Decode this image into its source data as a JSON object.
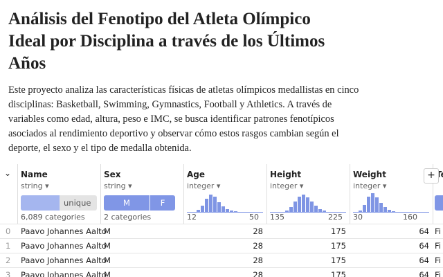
{
  "header": {
    "title": "Análisis del Fenotipo del Atleta Olímpico Ideal por Disciplina a través de los Últimos Años",
    "description": "Este proyecto analiza las características físicas de atletas olímpicos medallistas en cinco disciplinas: Basketball, Swimming, Gymnastics, Football y Athletics. A través de variables como edad, altura, peso e IMC, se busca identificar patrones fenotípicos asociados al rendimiento deportivo y observar cómo estos rasgos cambian según el deporte, el sexo y el tipo de medalla obtenida."
  },
  "table": {
    "columns": [
      {
        "name": "Name",
        "type": "string",
        "summary": "unique",
        "footer": "6,089 categories"
      },
      {
        "name": "Sex",
        "type": "string",
        "levels": [
          "M",
          "F"
        ],
        "footer": "2 categories"
      },
      {
        "name": "Age",
        "type": "integer",
        "min": 12,
        "max": 50
      },
      {
        "name": "Height",
        "type": "integer",
        "min": 135,
        "max": 225
      },
      {
        "name": "Weight",
        "type": "integer",
        "min": 30,
        "max": 160
      },
      {
        "name": "Te"
      }
    ],
    "rows": [
      [
        0,
        "Paavo Johannes Aalto",
        "M",
        28,
        175,
        64,
        "Fi"
      ],
      [
        1,
        "Paavo Johannes Aalto",
        "M",
        28,
        175,
        64,
        "Fi"
      ],
      [
        2,
        "Paavo Johannes Aalto",
        "M",
        28,
        175,
        64,
        "Fi"
      ],
      [
        3,
        "Paavo Johannes Aalto",
        "M",
        28,
        175,
        64,
        "Fi"
      ]
    ]
  }
}
